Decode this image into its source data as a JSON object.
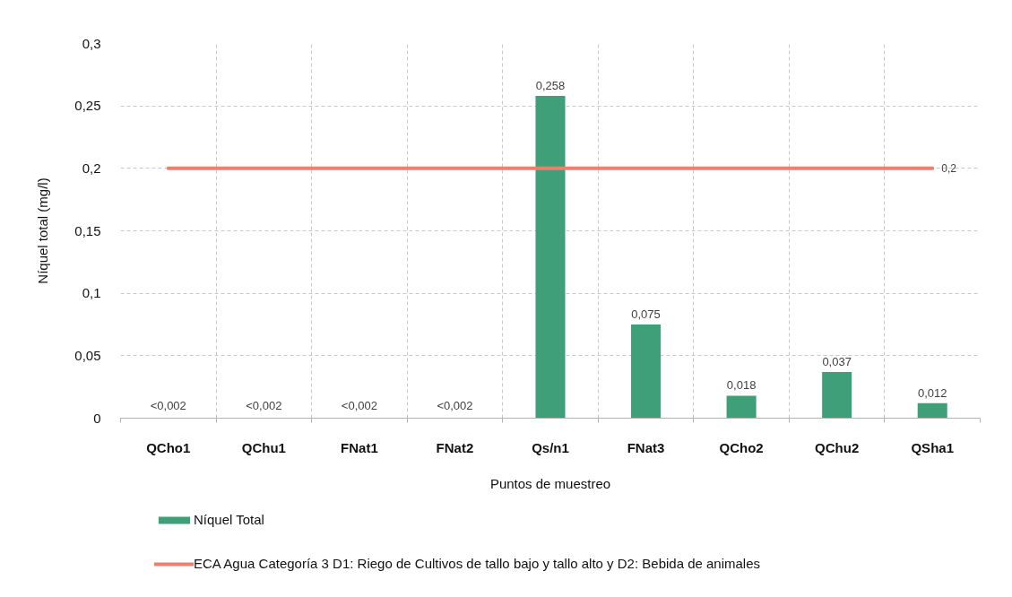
{
  "chart_data": {
    "type": "bar",
    "xlabel": "Puntos de muestreo",
    "ylabel": "Níquel total (mg/l)",
    "categories": [
      "QCho1",
      "QChu1",
      "FNat1",
      "FNat2",
      "Qs/n1",
      "FNat3",
      "QCho2",
      "QChu2",
      "QSha1"
    ],
    "series": [
      {
        "name": "Níquel Total",
        "color": "#3f9f78",
        "values": [
          null,
          null,
          null,
          null,
          0.258,
          0.075,
          0.018,
          0.037,
          0.012
        ],
        "value_labels": [
          "<0,002",
          "<0,002",
          "<0,002",
          "<0,002",
          "0,258",
          "0,075",
          "0,018",
          "0,037",
          "0,012"
        ]
      },
      {
        "name": "ECA Agua Categoría 3 D1: Riego de Cultivos de tallo bajo y tallo alto y D2: Bebida de animales",
        "type": "line",
        "color": "#f07e6e",
        "values": [
          0.2,
          0.2,
          0.2,
          0.2,
          0.2,
          0.2,
          0.2,
          0.2,
          0.2
        ],
        "value_labels": [
          null,
          null,
          null,
          null,
          null,
          null,
          null,
          null,
          "0,2"
        ]
      }
    ],
    "ylim": [
      0,
      0.3
    ],
    "yticks": [
      0,
      {
        "value": 0.05,
        "label": "0,05"
      },
      {
        "value": 0.1,
        "label": "0,1"
      },
      {
        "value": 0.15,
        "label": "0,15"
      },
      {
        "value": 0.2,
        "label": "0,2"
      },
      {
        "value": 0.25,
        "label": "0,25"
      },
      {
        "value": 0.3,
        "label": "0,3"
      }
    ],
    "grid": true,
    "legend": "bottom"
  }
}
